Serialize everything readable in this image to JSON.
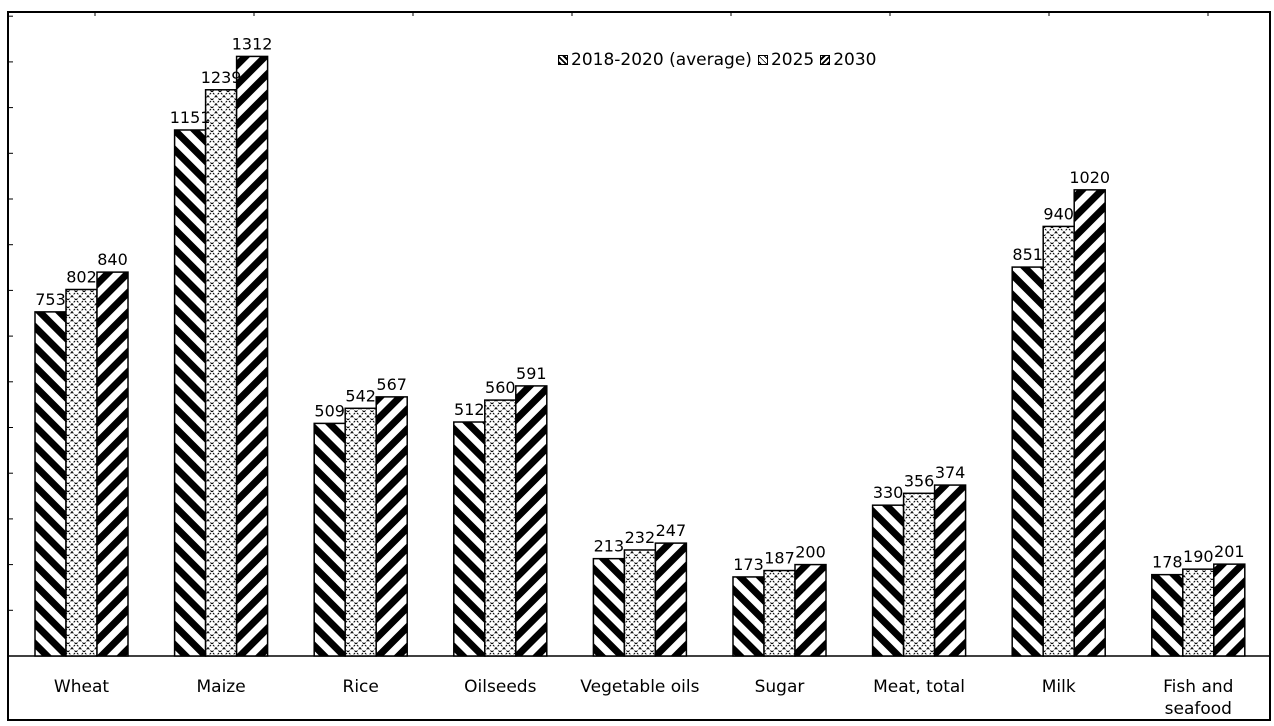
{
  "chart_data": {
    "type": "bar",
    "title": "",
    "xlabel": "",
    "ylabel": "",
    "ylim": [
      0,
      1400
    ],
    "grid": false,
    "legend_position": "top-center",
    "categories": [
      "Wheat",
      "Maize",
      "Rice",
      "Oilseeds",
      "Vegetable oils",
      "Sugar",
      "Meat, total",
      "Milk",
      "Fish and seafood"
    ],
    "series": [
      {
        "name": "2018-2020 (average)",
        "pattern": "diagonal-backslash",
        "values": [
          753,
          1151,
          509,
          512,
          213,
          173,
          330,
          851,
          178
        ]
      },
      {
        "name": "2025",
        "pattern": "crosshatch-dotted",
        "values": [
          802,
          1239,
          542,
          560,
          232,
          187,
          356,
          940,
          190
        ]
      },
      {
        "name": "2030",
        "pattern": "diagonal-slash",
        "values": [
          840,
          1312,
          567,
          591,
          247,
          200,
          374,
          1020,
          201
        ]
      }
    ],
    "colors": {
      "bar_stroke": "#000000",
      "background": "#ffffff"
    }
  }
}
